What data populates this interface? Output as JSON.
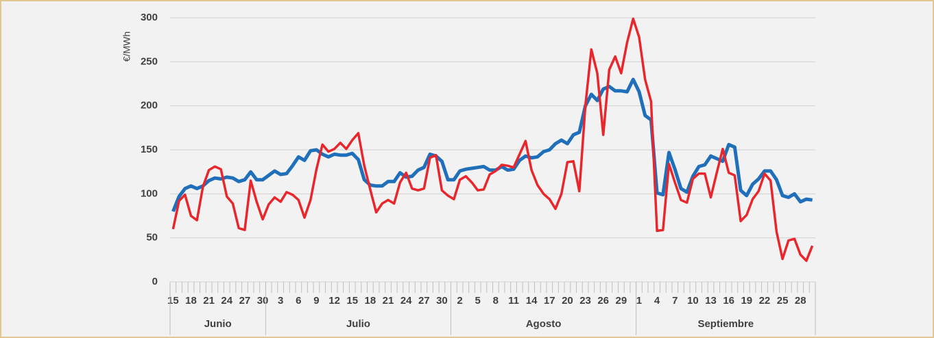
{
  "chart_data": {
    "type": "line",
    "y_label": "€/MWh",
    "ylim": [
      0,
      300
    ],
    "yticks": [
      0,
      50,
      100,
      150,
      200,
      250,
      300
    ],
    "grid": true,
    "months": [
      {
        "name": "Junio",
        "days": [
          "15",
          null,
          null,
          "18",
          null,
          null,
          "21",
          null,
          null,
          "24",
          null,
          null,
          "27",
          null,
          null,
          "30"
        ]
      },
      {
        "name": "Julio",
        "days": [
          null,
          null,
          "3",
          null,
          null,
          "6",
          null,
          null,
          "9",
          null,
          null,
          "12",
          null,
          null,
          "15",
          null,
          null,
          "18",
          null,
          null,
          "21",
          null,
          null,
          "24",
          null,
          null,
          "27",
          null,
          null,
          "30",
          null
        ]
      },
      {
        "name": "Agosto",
        "days": [
          null,
          "2",
          null,
          null,
          "5",
          null,
          null,
          "8",
          null,
          null,
          "11",
          null,
          null,
          "14",
          null,
          null,
          "17",
          null,
          null,
          "20",
          null,
          null,
          "23",
          null,
          null,
          "26",
          null,
          null,
          "29",
          null,
          null
        ]
      },
      {
        "name": "Septiembre",
        "days": [
          "1",
          null,
          null,
          "4",
          null,
          null,
          "7",
          null,
          null,
          "10",
          null,
          null,
          "13",
          null,
          null,
          "16",
          null,
          null,
          "19",
          null,
          null,
          "22",
          null,
          null,
          "25",
          null,
          null,
          "28",
          null,
          null
        ]
      }
    ],
    "series": [
      {
        "color": "#1f6fba",
        "width": 5,
        "values": [
          80,
          97,
          106,
          109,
          106,
          109,
          115,
          118,
          117,
          119,
          118,
          114,
          116,
          125,
          116,
          116,
          121,
          126,
          122,
          123,
          132,
          142,
          138,
          149,
          150,
          145,
          142,
          145,
          144,
          144,
          146,
          139,
          116,
          110,
          109,
          109,
          114,
          114,
          124,
          119,
          120,
          127,
          130,
          145,
          143,
          137,
          116,
          116,
          126,
          128,
          129,
          130,
          131,
          127,
          127,
          131,
          127,
          128,
          138,
          143,
          141,
          142,
          148,
          150,
          157,
          161,
          157,
          167,
          170,
          200,
          213,
          206,
          219,
          222,
          217,
          217,
          216,
          230,
          216,
          189,
          184,
          101,
          99,
          147,
          128,
          106,
          102,
          120,
          131,
          133,
          143,
          140,
          137,
          156,
          153,
          104,
          98,
          111,
          117,
          126,
          126,
          116,
          98,
          96,
          100,
          91,
          94,
          93
        ]
      },
      {
        "color": "#e8262b",
        "width": 3.5,
        "values": [
          60,
          92,
          99,
          75,
          70,
          108,
          127,
          131,
          128,
          97,
          89,
          61,
          59,
          115,
          91,
          71,
          88,
          96,
          91,
          102,
          99,
          93,
          73,
          93,
          128,
          156,
          148,
          151,
          158,
          151,
          161,
          169,
          132,
          105,
          79,
          89,
          93,
          89,
          113,
          124,
          106,
          104,
          106,
          141,
          144,
          104,
          98,
          94,
          116,
          120,
          113,
          104,
          105,
          122,
          126,
          133,
          132,
          130,
          145,
          160,
          127,
          110,
          100,
          94,
          83,
          100,
          136,
          137,
          103,
          200,
          264,
          237,
          167,
          241,
          256,
          237,
          272,
          299,
          278,
          230,
          205,
          58,
          59,
          134,
          113,
          93,
          90,
          117,
          123,
          123,
          96,
          124,
          151,
          124,
          121,
          69,
          76,
          94,
          103,
          123,
          115,
          57,
          26,
          47,
          49,
          31,
          24,
          41
        ]
      }
    ]
  }
}
